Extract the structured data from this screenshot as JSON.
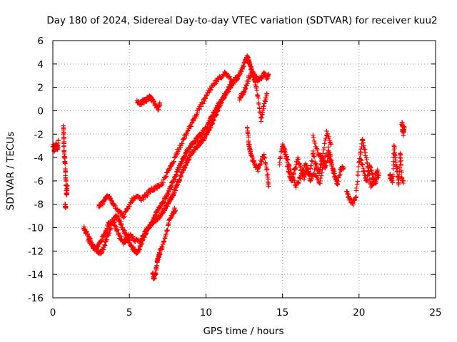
{
  "chart_data": {
    "type": "scatter",
    "title": "Day 180 of 2024, Sidereal Day-to-day VTEC variation (SDTVAR) for receiver kuu2",
    "xlabel": "GPS time / hours",
    "ylabel": "SDTVAR / TECUs",
    "xlim": [
      0,
      25
    ],
    "ylim": [
      -16,
      6
    ],
    "x_ticks": [
      0,
      5,
      10,
      15,
      20,
      25
    ],
    "y_ticks": [
      -16,
      -14,
      -12,
      -10,
      -8,
      -6,
      -4,
      -2,
      0,
      2,
      4,
      6
    ],
    "grid": true,
    "marker": "plus",
    "marker_color": "#ff0000",
    "series": [
      {
        "name": "SDTVAR",
        "segments": [
          {
            "x": [
              0.0,
              0.1,
              0.2,
              0.3,
              0.35
            ],
            "y": [
              -3.0,
              -3.5,
              -2.8,
              -3.3,
              -2.6
            ]
          },
          {
            "x": [
              0.7,
              0.72,
              0.75,
              0.8,
              0.85,
              0.9,
              0.95
            ],
            "y": [
              -1.3,
              -2.5,
              -3.8,
              -4.5,
              -6.0,
              -7.2,
              -6.5
            ]
          },
          {
            "x": [
              0.8,
              0.85
            ],
            "y": [
              -8.0,
              -8.3
            ]
          },
          {
            "x": [
              2.0,
              2.2,
              2.4,
              2.6,
              2.8,
              3.0,
              3.2,
              3.4,
              3.6,
              3.8,
              4.0,
              4.2,
              4.4,
              4.6,
              4.8,
              5.0,
              5.2,
              5.5,
              5.8,
              6.0,
              6.2,
              6.4,
              6.6,
              6.8,
              7.0,
              7.2,
              7.4,
              7.6,
              7.8,
              8.0,
              8.2,
              8.4,
              8.6,
              8.8,
              9.0,
              9.2,
              9.4,
              9.6,
              9.8,
              10.0,
              10.2,
              10.4,
              10.6,
              10.8,
              11.0,
              11.2,
              11.4,
              11.6,
              11.8,
              12.0
            ],
            "y": [
              -10.0,
              -10.5,
              -11.0,
              -11.6,
              -11.8,
              -11.5,
              -11.0,
              -10.5,
              -9.8,
              -9.4,
              -9.6,
              -10.2,
              -10.9,
              -11.3,
              -11.0,
              -10.6,
              -10.8,
              -11.2,
              -11.0,
              -10.5,
              -10.0,
              -9.8,
              -9.2,
              -8.6,
              -8.2,
              -7.8,
              -7.3,
              -6.8,
              -6.2,
              -5.6,
              -5.0,
              -4.4,
              -3.8,
              -3.4,
              -3.0,
              -2.7,
              -2.4,
              -2.1,
              -1.8,
              -1.5,
              -1.0,
              -0.5,
              0.0,
              0.5,
              0.8,
              1.2,
              1.6,
              2.0,
              2.5,
              2.9
            ]
          },
          {
            "x": [
              2.3,
              2.6,
              2.9,
              3.1,
              3.3,
              3.5,
              3.7,
              3.9,
              4.1,
              4.3,
              4.5,
              4.7,
              4.9,
              5.1,
              5.3,
              5.5,
              5.7,
              5.9,
              6.1,
              6.3,
              6.5,
              6.7,
              6.9,
              7.1,
              7.3,
              7.5,
              7.7,
              7.9,
              8.1,
              8.3,
              8.5,
              8.7,
              8.9,
              9.1,
              9.3,
              9.5,
              9.7,
              9.9,
              10.1,
              10.3,
              10.5,
              10.7,
              10.9,
              11.1,
              11.3,
              11.5,
              11.7
            ],
            "y": [
              -11.0,
              -11.5,
              -12.0,
              -12.2,
              -11.8,
              -11.0,
              -10.2,
              -9.5,
              -9.0,
              -9.2,
              -9.8,
              -10.5,
              -11.0,
              -11.5,
              -11.9,
              -12.1,
              -11.6,
              -11.0,
              -10.3,
              -9.9,
              -9.6,
              -9.4,
              -9.1,
              -8.8,
              -8.4,
              -8.0,
              -7.5,
              -7.0,
              -6.4,
              -5.8,
              -5.1,
              -4.5,
              -4.0,
              -3.6,
              -3.2,
              -2.9,
              -2.6,
              -2.3,
              -1.9,
              -1.4,
              -0.8,
              -0.2,
              0.4,
              1.0,
              1.5,
              2.0,
              2.4
            ]
          },
          {
            "x": [
              3.0,
              3.2,
              3.4,
              3.6,
              3.8,
              4.0,
              4.3,
              4.6,
              4.9,
              5.2,
              5.5,
              5.8,
              6.1,
              6.4,
              6.7,
              7.0,
              7.3,
              7.6,
              7.9,
              8.2,
              8.5,
              8.8,
              9.1,
              9.4,
              9.7,
              10.0,
              10.3,
              10.6,
              10.9,
              11.2,
              11.5,
              11.8
            ],
            "y": [
              -8.2,
              -8.0,
              -7.6,
              -7.3,
              -7.6,
              -8.0,
              -8.6,
              -9.0,
              -8.4,
              -7.6,
              -7.4,
              -7.6,
              -7.2,
              -6.8,
              -6.6,
              -6.5,
              -5.8,
              -5.0,
              -4.2,
              -3.3,
              -2.5,
              -1.8,
              -1.0,
              -0.2,
              0.5,
              1.2,
              1.8,
              2.4,
              2.8,
              3.2,
              2.9,
              2.4
            ]
          },
          {
            "x": [
              6.5,
              6.6,
              6.7,
              6.8,
              6.9,
              7.0
            ],
            "y": [
              -13.8,
              -14.3,
              -14.0,
              -13.0,
              -12.5,
              -12.2
            ]
          },
          {
            "x": [
              7.0,
              7.2,
              7.4,
              7.6,
              7.8,
              8.0
            ],
            "y": [
              -12.0,
              -11.5,
              -10.5,
              -9.5,
              -8.8,
              -8.4
            ]
          },
          {
            "x": [
              5.5,
              5.7,
              5.9,
              6.1,
              6.3,
              6.5,
              6.7,
              6.9,
              7.0
            ],
            "y": [
              0.8,
              0.6,
              0.8,
              0.9,
              1.2,
              0.9,
              0.4,
              0.2,
              0.6
            ]
          },
          {
            "x": [
              12.0,
              12.2,
              12.4,
              12.6,
              12.7,
              12.8,
              12.9,
              13.0,
              13.2,
              13.4,
              13.6,
              13.8,
              14.0,
              14.1
            ],
            "y": [
              2.5,
              3.2,
              3.8,
              4.3,
              4.6,
              4.2,
              3.8,
              3.5,
              3.0,
              2.6,
              2.8,
              3.2,
              2.8,
              3.0
            ]
          },
          {
            "x": [
              12.2,
              12.4,
              12.6,
              12.8,
              13.0,
              13.2,
              13.4,
              13.6,
              13.8,
              14.0
            ],
            "y": [
              1.0,
              1.5,
              2.0,
              2.8,
              3.2,
              2.5,
              1.2,
              -0.8,
              0.5,
              1.5
            ]
          },
          {
            "x": [
              12.7,
              12.8,
              12.9,
              13.0,
              13.2,
              13.4,
              13.6,
              13.8,
              14.0,
              14.1
            ],
            "y": [
              -1.5,
              -2.8,
              -3.5,
              -4.0,
              -4.6,
              -5.1,
              -4.3,
              -3.8,
              -5.2,
              -6.5
            ]
          },
          {
            "x": [
              14.8,
              15.0,
              15.2,
              15.4,
              15.6,
              15.8,
              16.0,
              16.2,
              16.4,
              16.6,
              16.8,
              17.0,
              17.2,
              17.4,
              17.6,
              17.8,
              18.0,
              18.2,
              18.4,
              18.6,
              18.8,
              19.0
            ],
            "y": [
              -4.5,
              -3.0,
              -3.8,
              -5.2,
              -6.0,
              -5.0,
              -4.2,
              -5.0,
              -5.8,
              -4.8,
              -5.5,
              -3.5,
              -4.8,
              -5.2,
              -4.0,
              -5.0,
              -3.8,
              -4.5,
              -5.5,
              -6.2,
              -5.0,
              -4.8
            ]
          },
          {
            "x": [
              15.0,
              15.3,
              15.6,
              15.9,
              16.2,
              16.5,
              16.8,
              17.1,
              17.4,
              17.7,
              18.0,
              18.3,
              18.6
            ],
            "y": [
              -2.8,
              -4.0,
              -5.5,
              -6.5,
              -5.6,
              -4.4,
              -6.0,
              -5.2,
              -6.3,
              -4.5,
              -3.2,
              -5.0,
              -6.4
            ]
          },
          {
            "x": [
              17.0,
              17.3,
              17.6,
              17.9,
              18.2
            ],
            "y": [
              -2.2,
              -3.6,
              -4.2,
              -1.8,
              -3.0
            ]
          },
          {
            "x": [
              19.2,
              19.4,
              19.6,
              19.8,
              20.0,
              20.2,
              20.4,
              20.6,
              20.8,
              21.0,
              21.2
            ],
            "y": [
              -7.0,
              -7.6,
              -7.9,
              -7.2,
              -4.5,
              -2.5,
              -3.5,
              -5.0,
              -6.6,
              -5.8,
              -5.0
            ]
          },
          {
            "x": [
              20.1,
              20.3,
              20.5,
              20.7,
              20.9,
              21.1,
              21.3
            ],
            "y": [
              -4.0,
              -5.2,
              -6.0,
              -4.6,
              -5.6,
              -6.1,
              -5.4
            ]
          },
          {
            "x": [
              22.0,
              22.1,
              22.2,
              22.3,
              22.4,
              22.5,
              22.6,
              22.7,
              22.8,
              22.9
            ],
            "y": [
              -5.5,
              -5.8,
              -6.0,
              -3.0,
              -4.5,
              -5.2,
              -6.3,
              -3.5,
              -5.8,
              -6.2
            ]
          },
          {
            "x": [
              22.8,
              22.85,
              22.9,
              22.95
            ],
            "y": [
              -1.0,
              -1.6,
              -2.0,
              -1.3
            ]
          }
        ]
      }
    ]
  }
}
